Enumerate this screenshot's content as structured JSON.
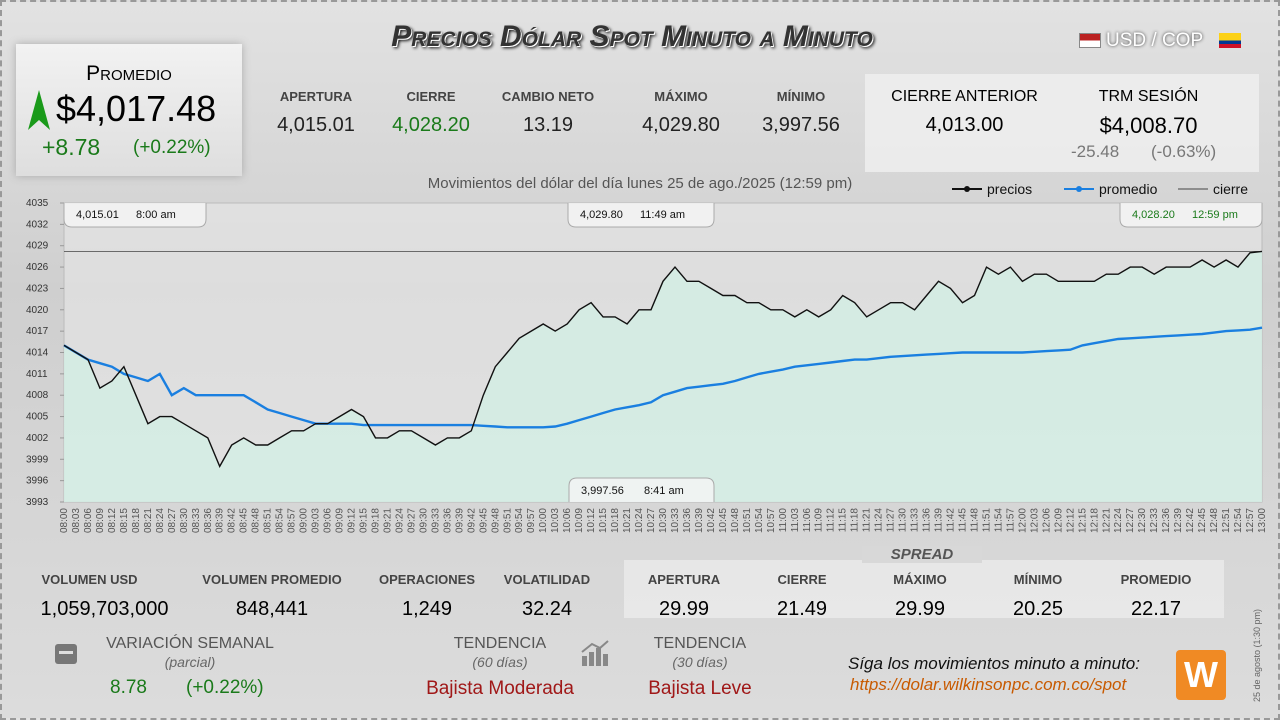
{
  "header": {
    "title": "Precios Dólar Spot Minuto a Minuto",
    "pair": "USD / COP"
  },
  "promedio": {
    "label": "Promedio",
    "value": "$4,017.48",
    "change": "+8.78",
    "change_pct": "(+0.22%)"
  },
  "session": [
    {
      "label": "APERTURA",
      "value": "4,015.01"
    },
    {
      "label": "CIERRE",
      "value": "4,028.20"
    },
    {
      "label": "CAMBIO NETO",
      "value": "13.19"
    },
    {
      "label": "MÁXIMO",
      "value": "4,029.80"
    },
    {
      "label": "MÍNIMO",
      "value": "3,997.56"
    }
  ],
  "previous": {
    "label": "CIERRE ANTERIOR",
    "value": "4,013.00"
  },
  "trm": {
    "label": "TRM SESIÓN",
    "value": "$4,008.70",
    "change": "-25.48",
    "change_pct": "(-0.63%)"
  },
  "chart_data": {
    "type": "line",
    "subtitle": "Movimientos del dólar del día lunes 25 de ago./2025 (12:59 pm)",
    "categories": [
      "08:00",
      "08:03",
      "08:06",
      "08:09",
      "08:12",
      "08:15",
      "08:18",
      "08:21",
      "08:24",
      "08:27",
      "08:30",
      "08:33",
      "08:36",
      "08:39",
      "08:42",
      "08:45",
      "08:48",
      "08:51",
      "08:54",
      "08:57",
      "09:00",
      "09:03",
      "09:06",
      "09:09",
      "09:12",
      "09:15",
      "09:18",
      "09:21",
      "09:24",
      "09:27",
      "09:30",
      "09:33",
      "09:36",
      "09:39",
      "09:42",
      "09:45",
      "09:48",
      "09:51",
      "09:54",
      "09:57",
      "10:00",
      "10:03",
      "10:06",
      "10:09",
      "10:12",
      "10:15",
      "10:18",
      "10:21",
      "10:24",
      "10:27",
      "10:30",
      "10:33",
      "10:36",
      "10:39",
      "10:42",
      "10:45",
      "10:48",
      "10:51",
      "10:54",
      "10:57",
      "11:00",
      "11:03",
      "11:06",
      "11:09",
      "11:12",
      "11:15",
      "11:18",
      "11:21",
      "11:24",
      "11:27",
      "11:30",
      "11:33",
      "11:36",
      "11:39",
      "11:42",
      "11:45",
      "11:48",
      "11:51",
      "11:54",
      "11:57",
      "12:00",
      "12:03",
      "12:06",
      "12:09",
      "12:12",
      "12:15",
      "12:18",
      "12:21",
      "12:24",
      "12:27",
      "12:30",
      "12:33",
      "12:36",
      "12:39",
      "12:42",
      "12:45",
      "12:48",
      "12:51",
      "12:54",
      "12:57",
      "13:00"
    ],
    "series": [
      {
        "name": "precios",
        "color": "#111111",
        "values": [
          4015.01,
          4014,
          4013,
          4009,
          4010,
          4012,
          4008,
          4004,
          4005,
          4005,
          4004,
          4003,
          4002,
          3998,
          4001,
          4002,
          4001,
          4001,
          4002,
          4003,
          4003,
          4004,
          4004,
          4005,
          4006,
          4005,
          4002,
          4002,
          4003,
          4003,
          4002,
          4001,
          4002,
          4002,
          4003,
          4008,
          4012,
          4014,
          4016,
          4017,
          4018,
          4017,
          4018,
          4020,
          4021,
          4019,
          4019,
          4018,
          4020,
          4020,
          4024,
          4026,
          4024,
          4024,
          4023,
          4022,
          4022,
          4021,
          4021,
          4020,
          4020,
          4019,
          4020,
          4019,
          4020,
          4022,
          4021,
          4019,
          4020,
          4021,
          4021,
          4020,
          4022,
          4024,
          4023,
          4021,
          4022,
          4026,
          4025,
          4026,
          4024,
          4025,
          4025,
          4024,
          4024,
          4024,
          4024,
          4025,
          4025,
          4026,
          4026,
          4025,
          4026,
          4026,
          4026,
          4027,
          4026,
          4027,
          4026,
          4028,
          4028.2
        ]
      },
      {
        "name": "promedio",
        "color": "#1a7fe0",
        "values": [
          4015,
          4014,
          4013,
          4012.5,
          4012,
          4011,
          4010.5,
          4010,
          4011,
          4008,
          4009,
          4008,
          4008,
          4008,
          4008,
          4008,
          4007,
          4006,
          4005.5,
          4005,
          4004.5,
          4004,
          4004,
          4004,
          4004,
          4003.8,
          4003.8,
          4003.8,
          4003.8,
          4003.8,
          4003.8,
          4003.8,
          4003.8,
          4003.8,
          4003.8,
          4003.7,
          4003.6,
          4003.5,
          4003.5,
          4003.5,
          4003.5,
          4003.6,
          4004,
          4004.5,
          4005,
          4005.5,
          4006,
          4006.3,
          4006.6,
          4007,
          4008,
          4008.5,
          4009,
          4009.2,
          4009.4,
          4009.6,
          4010,
          4010.5,
          4011,
          4011.3,
          4011.6,
          4012,
          4012.2,
          4012.4,
          4012.6,
          4012.8,
          4013,
          4013,
          4013.2,
          4013.4,
          4013.5,
          4013.6,
          4013.7,
          4013.8,
          4013.9,
          4014,
          4014,
          4014,
          4014,
          4014,
          4014,
          4014.1,
          4014.2,
          4014.3,
          4014.4,
          4015,
          4015.3,
          4015.6,
          4015.9,
          4016,
          4016.1,
          4016.2,
          4016.3,
          4016.4,
          4016.5,
          4016.6,
          4016.8,
          4017,
          4017.1,
          4017.2,
          4017.48
        ]
      }
    ],
    "reference_line": {
      "name": "cierre",
      "color": "#444444",
      "value": 4028.2
    },
    "ylim": [
      3993,
      4035
    ],
    "yticks": [
      3993,
      3996,
      3999,
      4002,
      4005,
      4008,
      4011,
      4014,
      4017,
      4020,
      4023,
      4026,
      4029,
      4032,
      4035
    ],
    "grid": false,
    "fill": "#d3ede4",
    "annotations": [
      {
        "label": "4,015.01",
        "time": "8:00 am"
      },
      {
        "label": "4,029.80",
        "time": "11:49 am"
      },
      {
        "label": "4,028.20",
        "time": "12:59 pm"
      },
      {
        "label": "3,997.56",
        "time": "8:41 am"
      }
    ]
  },
  "volume": [
    {
      "label": "VOLUMEN USD",
      "value": "1,059,703,000"
    },
    {
      "label": "VOLUMEN PROMEDIO",
      "value": "848,441"
    },
    {
      "label": "OPERACIONES",
      "value": "1,249"
    },
    {
      "label": "VOLATILIDAD",
      "value": "32.24"
    }
  ],
  "spread": {
    "title": "SPREAD",
    "items": [
      {
        "label": "APERTURA",
        "value": "29.99"
      },
      {
        "label": "CIERRE",
        "value": "21.49"
      },
      {
        "label": "MÁXIMO",
        "value": "29.99"
      },
      {
        "label": "MÍNIMO",
        "value": "20.25"
      },
      {
        "label": "PROMEDIO",
        "value": "22.17"
      }
    ]
  },
  "weekly": {
    "label": "VARIACIÓN SEMANAL",
    "note": "(parcial)",
    "change": "8.78",
    "change_pct": "(+0.22%)"
  },
  "trends": [
    {
      "label": "TENDENCIA",
      "period": "(60 días)",
      "value": "Bajista Moderada"
    },
    {
      "label": "TENDENCIA",
      "period": "(30 días)",
      "value": "Bajista Leve"
    }
  ],
  "footer": {
    "text": "Síga los movimientos minuto a minuto:",
    "url": "https://dolar.wilkinsonpc.com.co/spot",
    "stamp": "25 de agosto (1:30 pm)",
    "logo": "W"
  }
}
